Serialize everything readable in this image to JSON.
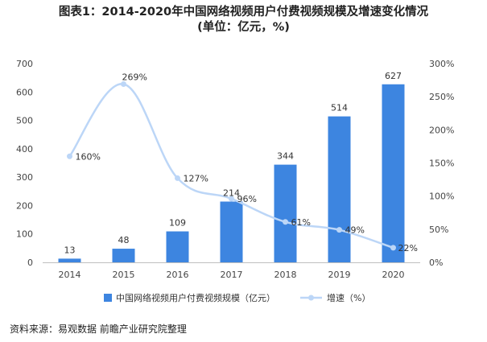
{
  "title": "图表1：2014-2020年中国网络视频用户付费视频规模及增速变化情况",
  "subtitle": "(单位：亿元，%)",
  "source": "资料来源：易观数据 前瞻产业研究院整理",
  "chart_data": {
    "type": "bar",
    "categories": [
      "2014",
      "2015",
      "2016",
      "2017",
      "2018",
      "2019",
      "2020"
    ],
    "series": [
      {
        "name": "中国网络视频用户付费视频规模（亿元）",
        "type": "bar",
        "axis": "left",
        "values": [
          13,
          48,
          109,
          214,
          344,
          514,
          627
        ],
        "labels": [
          "13",
          "48",
          "109",
          "214",
          "344",
          "514",
          "627"
        ],
        "color": "#3d85e0"
      },
      {
        "name": "增速（%）",
        "type": "line",
        "axis": "right",
        "values": [
          160,
          269,
          127,
          96,
          61,
          49,
          22
        ],
        "labels": [
          "160%",
          "269%",
          "127%",
          "96%",
          "61%",
          "49%",
          "22%"
        ],
        "color": "#bcd6f7"
      }
    ],
    "y_left": {
      "range": [
        0,
        700
      ],
      "ticks": [
        "0",
        "100",
        "200",
        "300",
        "400",
        "500",
        "600",
        "700"
      ]
    },
    "y_right": {
      "range": [
        0,
        300
      ],
      "ticks": [
        "0%",
        "50%",
        "100%",
        "150%",
        "200%",
        "250%",
        "300%"
      ]
    },
    "grid": false,
    "legend_position": "bottom"
  }
}
